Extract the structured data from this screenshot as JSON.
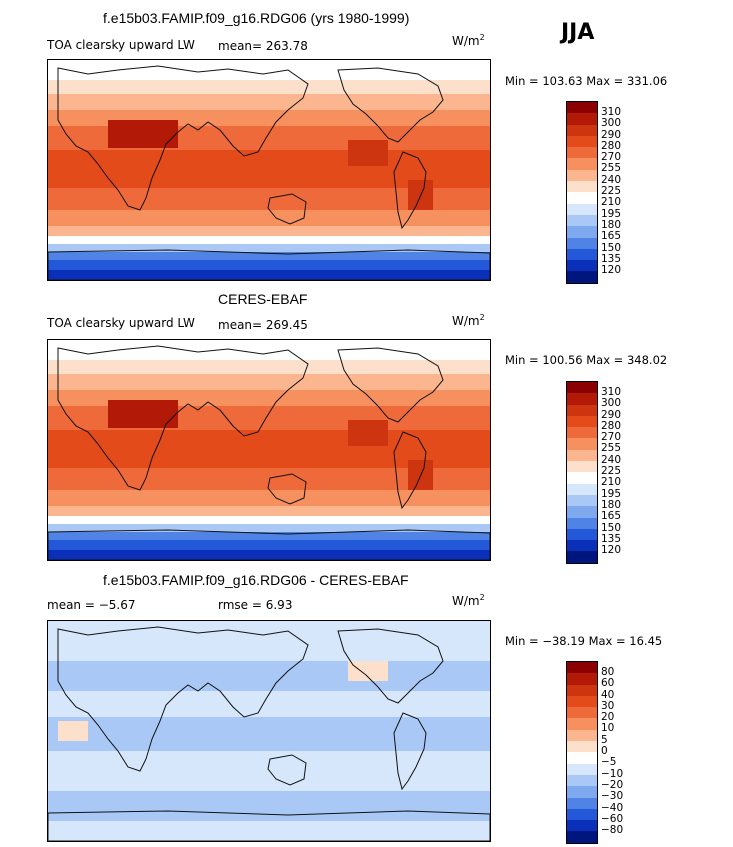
{
  "season": "JJA",
  "panels": [
    {
      "title": "f.e15b03.FAMIP.f09_g16.RDG06 (yrs 1980-1999)",
      "variable": "TOA clearsky upward LW",
      "stat": "mean= 263.78",
      "units": "W/m",
      "units_sup": "2",
      "minmax": "Min = 103.63 Max = 331.06",
      "levels": [
        "310",
        "300",
        "290",
        "280",
        "270",
        "255",
        "240",
        "225",
        "210",
        "195",
        "180",
        "165",
        "150",
        "135",
        "120"
      ],
      "colors": [
        "#8b0000",
        "#b21a07",
        "#cd3410",
        "#e34b1b",
        "#ef6a3a",
        "#f7905f",
        "#fbb58f",
        "#fde0cc",
        "#ffffff",
        "#d6e6fb",
        "#aac8f5",
        "#7ea9ee",
        "#4f83e6",
        "#2358d9",
        "#0a2fb8",
        "#00167f"
      ]
    },
    {
      "title": "CERES-EBAF",
      "variable": "TOA clearsky upward LW",
      "stat": "mean= 269.45",
      "units": "W/m",
      "units_sup": "2",
      "minmax": "Min = 100.56 Max = 348.02",
      "levels": [
        "310",
        "300",
        "290",
        "280",
        "270",
        "255",
        "240",
        "225",
        "210",
        "195",
        "180",
        "165",
        "150",
        "135",
        "120"
      ],
      "colors": [
        "#8b0000",
        "#b21a07",
        "#cd3410",
        "#e34b1b",
        "#ef6a3a",
        "#f7905f",
        "#fbb58f",
        "#fde0cc",
        "#ffffff",
        "#d6e6fb",
        "#aac8f5",
        "#7ea9ee",
        "#4f83e6",
        "#2358d9",
        "#0a2fb8",
        "#00167f"
      ]
    },
    {
      "title": "f.e15b03.FAMIP.f09_g16.RDG06 - CERES-EBAF",
      "variable": "mean =   −5.67",
      "stat": "rmse =    6.93",
      "units": "W/m",
      "units_sup": "2",
      "minmax": "Min = −38.19 Max =  16.45",
      "levels": [
        "80",
        "60",
        "40",
        "30",
        "20",
        "10",
        "5",
        "0",
        "−5",
        "−10",
        "−20",
        "−30",
        "−40",
        "−60",
        "−80"
      ],
      "colors": [
        "#8b0000",
        "#b21a07",
        "#cd3410",
        "#e34b1b",
        "#ef6a3a",
        "#f7905f",
        "#fbb58f",
        "#fde0cc",
        "#ffffff",
        "#d6e6fb",
        "#aac8f5",
        "#7ea9ee",
        "#4f83e6",
        "#2358d9",
        "#0a2fb8",
        "#00167f"
      ]
    }
  ]
}
